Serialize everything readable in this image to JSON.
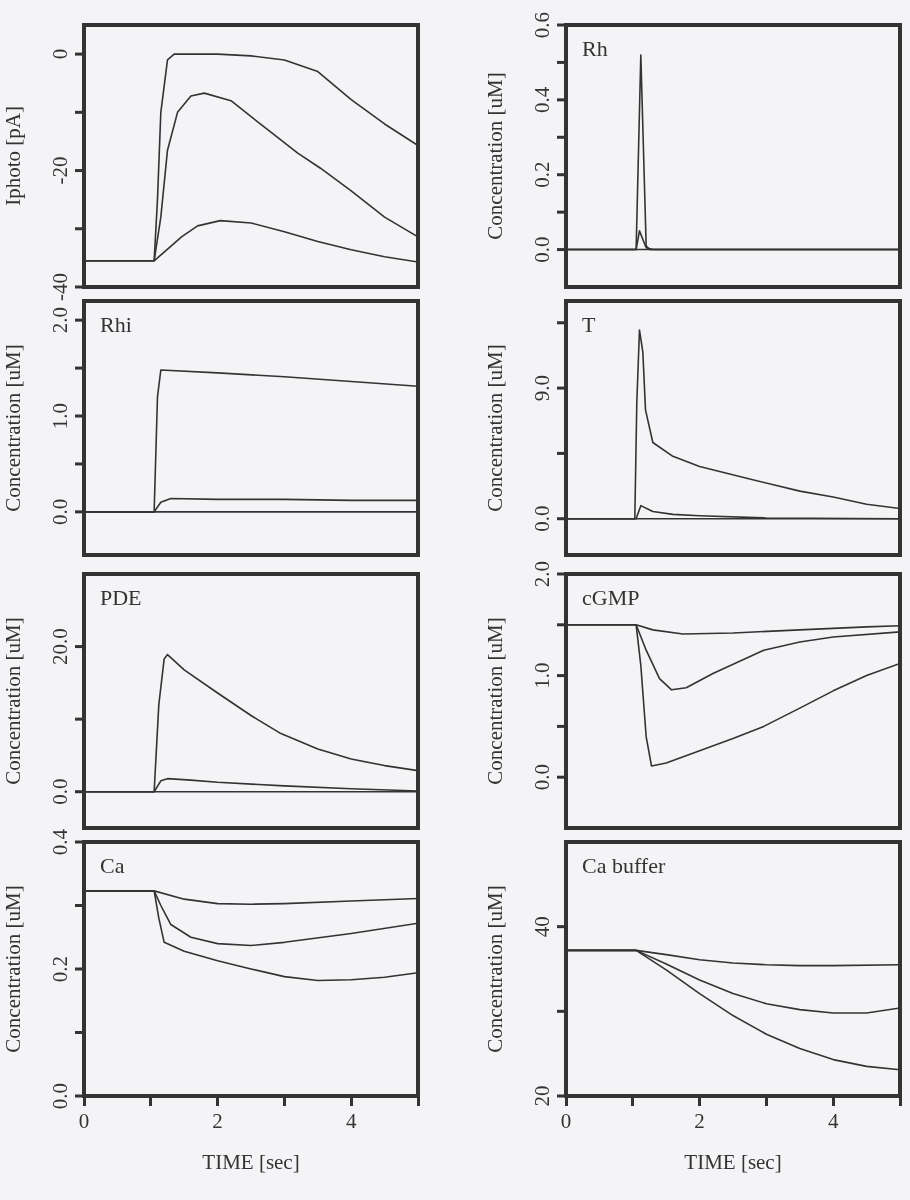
{
  "chart_data": [
    {
      "type": "line",
      "ylabel": "Iphoto [pA]",
      "xlim": [
        0,
        5
      ],
      "ylim": [
        -40,
        5
      ],
      "yticks": [
        0,
        {
          "value": -10,
          "label": null
        },
        -20,
        {
          "value": -30,
          "label": null
        },
        -40
      ],
      "tick_labels": "y",
      "grid": false,
      "legend": false,
      "series": [
        {
          "color": "#333333",
          "x": [
            0,
            1.05,
            1.1,
            1.15,
            1.25,
            1.35,
            2,
            2.5,
            3,
            3.5,
            4,
            4.5,
            5
          ],
          "values": [
            -35.5,
            -35.5,
            -25,
            -10,
            -1,
            0,
            0,
            -0.3,
            -1,
            -3,
            -7.8,
            -12,
            -15.7
          ]
        },
        {
          "color": "#333333",
          "x": [
            0,
            1.05,
            1.15,
            1.25,
            1.4,
            1.6,
            1.8,
            2.2,
            2.74,
            3.2,
            3.54,
            4,
            4.5,
            5
          ],
          "values": [
            -35.5,
            -35.5,
            -28,
            -16.5,
            -10,
            -7.2,
            -6.7,
            -8,
            -12.9,
            -17,
            -19.6,
            -23.5,
            -28,
            -31.4
          ]
        },
        {
          "color": "#333333",
          "x": [
            0,
            1.05,
            1.2,
            1.46,
            1.7,
            2.04,
            2.5,
            3,
            3.5,
            4,
            4.5,
            5
          ],
          "values": [
            -35.5,
            -35.5,
            -34,
            -31.4,
            -29.5,
            -28.6,
            -29,
            -30.5,
            -32.2,
            -33.6,
            -34.8,
            -35.7
          ]
        }
      ]
    },
    {
      "type": "line",
      "title": "Rh",
      "ylabel": "Concentration [uM]",
      "xlim": [
        0,
        5
      ],
      "ylim": [
        -0.1,
        0.6
      ],
      "yticks": [
        {
          "value": 0,
          "label": "0.0"
        },
        {
          "value": 0.1,
          "label": null
        },
        {
          "value": 0.2,
          "label": "0.2"
        },
        {
          "value": 0.3,
          "label": null
        },
        {
          "value": 0.4,
          "label": "0.4"
        },
        {
          "value": 0.5,
          "label": null
        },
        {
          "value": 0.6,
          "label": "0.6"
        }
      ],
      "tick_labels": "y",
      "grid": false,
      "legend": false,
      "series": [
        {
          "color": "#333333",
          "x": [
            0,
            1.05,
            1.12,
            1.2,
            1.25,
            5
          ],
          "values": [
            0,
            0,
            0.52,
            0.01,
            0,
            0
          ]
        },
        {
          "color": "#333333",
          "x": [
            0,
            1.05,
            1.1,
            1.2,
            1.3,
            5
          ],
          "values": [
            0,
            0,
            0.05,
            0.005,
            0,
            0
          ]
        },
        {
          "color": "#333333",
          "x": [
            0,
            5
          ],
          "values": [
            0,
            0
          ]
        }
      ]
    },
    {
      "type": "line",
      "title": "Rhi",
      "ylabel": "Concentration [uM]",
      "xlim": [
        0,
        5
      ],
      "ylim": [
        -0.45,
        2.2
      ],
      "yticks": [
        {
          "value": 0,
          "label": "0.0"
        },
        {
          "value": 0.5,
          "label": null
        },
        {
          "value": 1,
          "label": "1.0"
        },
        {
          "value": 1.5,
          "label": null
        },
        {
          "value": 2,
          "label": "2.0"
        }
      ],
      "tick_labels": "y",
      "grid": false,
      "legend": false,
      "series": [
        {
          "color": "#333333",
          "x": [
            0,
            1.05,
            1.1,
            1.15,
            2,
            3,
            4,
            5
          ],
          "values": [
            0,
            0,
            1.2,
            1.48,
            1.45,
            1.41,
            1.36,
            1.31
          ]
        },
        {
          "color": "#333333",
          "x": [
            0,
            1.05,
            1.15,
            1.3,
            2,
            3,
            4,
            5
          ],
          "values": [
            0,
            0,
            0.1,
            0.14,
            0.13,
            0.13,
            0.12,
            0.12
          ]
        },
        {
          "color": "#333333",
          "x": [
            0,
            5
          ],
          "values": [
            0,
            0
          ]
        }
      ]
    },
    {
      "type": "line",
      "title": "T",
      "ylabel": "Concentration [uM]",
      "xlim": [
        0,
        5
      ],
      "ylim": [
        -2.5,
        15
      ],
      "yticks": [
        {
          "value": 0,
          "label": "0.0"
        },
        {
          "value": 4.5,
          "label": null
        },
        {
          "value": 9,
          "label": "9.0"
        },
        {
          "value": 13.5,
          "label": null
        }
      ],
      "tick_labels": "y",
      "grid": false,
      "legend": false,
      "series": [
        {
          "color": "#333333",
          "x": [
            0,
            1.03,
            1.06,
            1.1,
            1.15,
            1.19,
            1.3,
            1.6,
            2,
            2.69,
            3.5,
            4,
            4.5,
            5
          ],
          "values": [
            0,
            0,
            8,
            13,
            11.5,
            7.5,
            5.25,
            4.3,
            3.6,
            2.8,
            1.9,
            1.5,
            1,
            0.7
          ]
        },
        {
          "color": "#333333",
          "x": [
            0,
            1.05,
            1.12,
            1.3,
            1.6,
            2,
            3,
            5
          ],
          "values": [
            0,
            0,
            0.9,
            0.5,
            0.3,
            0.2,
            0.05,
            0
          ]
        },
        {
          "color": "#333333",
          "x": [
            0,
            5
          ],
          "values": [
            0,
            0
          ]
        }
      ]
    },
    {
      "type": "line",
      "title": "PDE",
      "ylabel": "Concentration [uM]",
      "xlim": [
        0,
        5
      ],
      "ylim": [
        -5,
        30
      ],
      "yticks": [
        {
          "value": 0,
          "label": "0.0"
        },
        {
          "value": 10,
          "label": null
        },
        {
          "value": 20,
          "label": "20.0"
        }
      ],
      "tick_labels": "y",
      "grid": false,
      "legend": false,
      "series": [
        {
          "color": "#333333",
          "x": [
            0,
            1.05,
            1.12,
            1.2,
            1.25,
            1.5,
            2,
            2.5,
            2.93,
            3.5,
            4,
            4.5,
            5
          ],
          "values": [
            0,
            0,
            12,
            18.3,
            18.9,
            16.8,
            13.6,
            10.5,
            8.1,
            5.9,
            4.5,
            3.6,
            2.9
          ]
        },
        {
          "color": "#333333",
          "x": [
            0,
            1.05,
            1.15,
            1.25,
            1.6,
            2,
            3,
            4,
            5
          ],
          "values": [
            0,
            0,
            1.5,
            1.8,
            1.6,
            1.3,
            0.8,
            0.4,
            0.1
          ]
        },
        {
          "color": "#333333",
          "x": [
            0,
            5
          ],
          "values": [
            0,
            0
          ]
        }
      ]
    },
    {
      "type": "line",
      "title": "cGMP",
      "ylabel": "Concentration [uM]",
      "xlim": [
        0,
        5
      ],
      "ylim": [
        -0.5,
        2
      ],
      "yticks": [
        {
          "value": 0,
          "label": "0.0"
        },
        {
          "value": 0.5,
          "label": null
        },
        {
          "value": 1,
          "label": "1.0"
        },
        {
          "value": 1.5,
          "label": null
        },
        {
          "value": 2,
          "label": "2.0"
        }
      ],
      "tick_labels": "y",
      "grid": false,
      "legend": false,
      "series": [
        {
          "color": "#333333",
          "x": [
            0,
            1.05,
            1.3,
            1.75,
            2.5,
            3.5,
            4.5,
            5
          ],
          "values": [
            1.5,
            1.5,
            1.45,
            1.41,
            1.42,
            1.45,
            1.48,
            1.49
          ]
        },
        {
          "color": "#333333",
          "x": [
            0,
            1.05,
            1.2,
            1.4,
            1.58,
            1.8,
            2.2,
            2.96,
            3.5,
            4,
            5
          ],
          "values": [
            1.5,
            1.5,
            1.25,
            0.97,
            0.86,
            0.88,
            1.02,
            1.25,
            1.33,
            1.38,
            1.43
          ]
        },
        {
          "color": "#333333",
          "x": [
            0,
            1.05,
            1.12,
            1.2,
            1.28,
            1.5,
            2,
            2.5,
            2.96,
            3.5,
            4,
            4.5,
            5
          ],
          "values": [
            1.5,
            1.5,
            1.1,
            0.4,
            0.11,
            0.14,
            0.26,
            0.38,
            0.5,
            0.68,
            0.85,
            1,
            1.12
          ]
        }
      ]
    },
    {
      "type": "line",
      "title": "Ca",
      "ylabel": "Concentration [uM]",
      "xlabel": "TIME [sec]",
      "xlim": [
        0,
        5
      ],
      "ylim": [
        0,
        0.4
      ],
      "xticks": [
        0,
        {
          "value": 1,
          "label": null
        },
        2,
        {
          "value": 3,
          "label": null
        },
        4,
        {
          "value": 5,
          "label": null
        }
      ],
      "yticks": [
        {
          "value": 0,
          "label": "0.0"
        },
        {
          "value": 0.1,
          "label": null
        },
        {
          "value": 0.2,
          "label": "0.2"
        },
        {
          "value": 0.3,
          "label": null
        },
        {
          "value": 0.4,
          "label": "0.4"
        }
      ],
      "grid": false,
      "legend": false,
      "series": [
        {
          "color": "#333333",
          "x": [
            0,
            1.05,
            1.5,
            2,
            2.5,
            3,
            4,
            5
          ],
          "values": [
            0.323,
            0.323,
            0.31,
            0.303,
            0.302,
            0.303,
            0.307,
            0.311
          ]
        },
        {
          "color": "#333333",
          "x": [
            0,
            1.05,
            1.15,
            1.3,
            1.6,
            2,
            2.5,
            3,
            4,
            5
          ],
          "values": [
            0.323,
            0.323,
            0.3,
            0.27,
            0.25,
            0.24,
            0.237,
            0.242,
            0.256,
            0.272
          ]
        },
        {
          "color": "#333333",
          "x": [
            0,
            1.05,
            1.12,
            1.2,
            1.5,
            2,
            2.5,
            3,
            3.5,
            4,
            4.5,
            5
          ],
          "values": [
            0.323,
            0.323,
            0.28,
            0.242,
            0.228,
            0.213,
            0.2,
            0.188,
            0.182,
            0.183,
            0.187,
            0.194
          ]
        }
      ]
    },
    {
      "type": "line",
      "title": "Ca buffer",
      "ylabel": "Concentration [uM]",
      "xlabel": "TIME [sec]",
      "xlim": [
        0,
        5
      ],
      "ylim": [
        20,
        50
      ],
      "xticks": [
        0,
        {
          "value": 1,
          "label": null
        },
        2,
        {
          "value": 3,
          "label": null
        },
        4,
        {
          "value": 5,
          "label": null
        }
      ],
      "yticks": [
        20,
        {
          "value": 30,
          "label": null
        },
        40
      ],
      "grid": false,
      "legend": false,
      "series": [
        {
          "color": "#333333",
          "x": [
            0,
            1.05,
            1.5,
            2,
            2.5,
            3,
            3.5,
            4,
            5
          ],
          "values": [
            37.2,
            37.2,
            36.7,
            36.1,
            35.7,
            35.5,
            35.4,
            35.4,
            35.5
          ]
        },
        {
          "color": "#333333",
          "x": [
            0,
            1.05,
            1.5,
            2,
            2.5,
            3,
            3.5,
            4,
            4.5,
            5
          ],
          "values": [
            37.2,
            37.2,
            35.6,
            33.7,
            32.1,
            30.9,
            30.2,
            29.8,
            29.8,
            30.4
          ]
        },
        {
          "color": "#333333",
          "x": [
            0,
            1.05,
            1.5,
            2,
            2.5,
            3,
            3.5,
            4,
            4.5,
            5
          ],
          "values": [
            37.2,
            37.2,
            34.9,
            32.1,
            29.5,
            27.3,
            25.6,
            24.3,
            23.5,
            23.1
          ]
        }
      ]
    }
  ]
}
